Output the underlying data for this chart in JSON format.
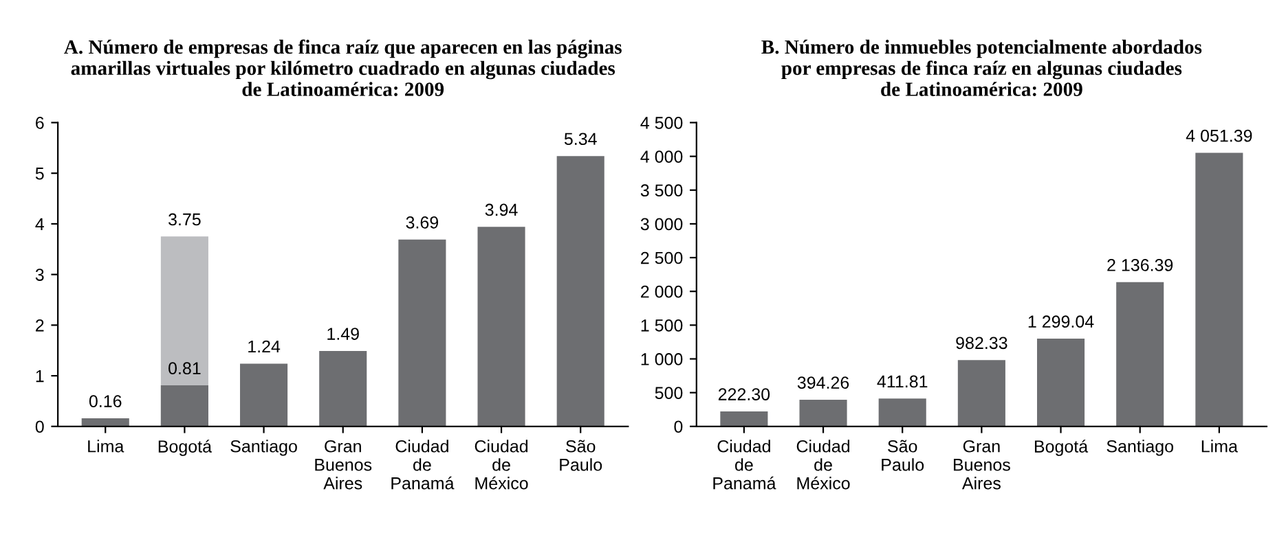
{
  "chart_data": [
    {
      "type": "bar",
      "title": "A. Número de empresas de finca raíz que aparecen en las páginas\namarillas virtuales por kilómetro cuadrado en algunas ciudades\nde Latinoamérica: 2009",
      "categories": [
        "Lima",
        "Bogotá",
        "Santiago",
        "Gran\nBuenos\nAires",
        "Ciudad\nde\nPanamá",
        "Ciudad\nde\nMéxico",
        "São\nPaulo"
      ],
      "series": [
        {
          "color": "#bcbdc0",
          "values": [
            null,
            3.75,
            null,
            null,
            null,
            null,
            null
          ],
          "value_labels": [
            null,
            "3.75",
            null,
            null,
            null,
            null,
            null
          ]
        },
        {
          "color": "#6d6e71",
          "values": [
            0.16,
            0.81,
            1.24,
            1.49,
            3.69,
            3.94,
            5.34
          ],
          "value_labels": [
            "0.16",
            "0.81",
            "1.24",
            "1.49",
            "3.69",
            "3.94",
            "5.34"
          ]
        }
      ],
      "ylim": [
        0,
        6
      ],
      "yticks": [
        0,
        1,
        2,
        3,
        4,
        5,
        6
      ],
      "grid": false,
      "legend": false
    },
    {
      "type": "bar",
      "title": "B. Número de inmuebles potencialmente abordados\npor empresas de finca raíz en algunas ciudades\nde Latinoamérica: 2009",
      "categories": [
        "Ciudad\nde\nPanamá",
        "Ciudad\nde\nMéxico",
        "São\nPaulo",
        "Gran\nBuenos\nAires",
        "Bogotá",
        "Santiago",
        "Lima"
      ],
      "series": [
        {
          "color": "#6d6e71",
          "values": [
            222.3,
            394.26,
            411.81,
            982.33,
            1299.04,
            2136.39,
            4051.39
          ],
          "value_labels": [
            "222.30",
            "394.26",
            "411.81",
            "982.33",
            "1 299.04",
            "2 136.39",
            "4 051.39"
          ]
        }
      ],
      "ylim": [
        0,
        4500
      ],
      "yticks": [
        0,
        {
          "value": 500,
          "label": "500"
        },
        {
          "value": 1000,
          "label": "1 000"
        },
        {
          "value": 1500,
          "label": "1 500"
        },
        {
          "value": 2000,
          "label": "2 000"
        },
        {
          "value": 2500,
          "label": "2 500"
        },
        {
          "value": 3000,
          "label": "3 000"
        },
        {
          "value": 3500,
          "label": "3 500"
        },
        {
          "value": 4000,
          "label": "4 000"
        },
        {
          "value": 4500,
          "label": "4 500"
        }
      ],
      "grid": false,
      "legend": false
    }
  ]
}
